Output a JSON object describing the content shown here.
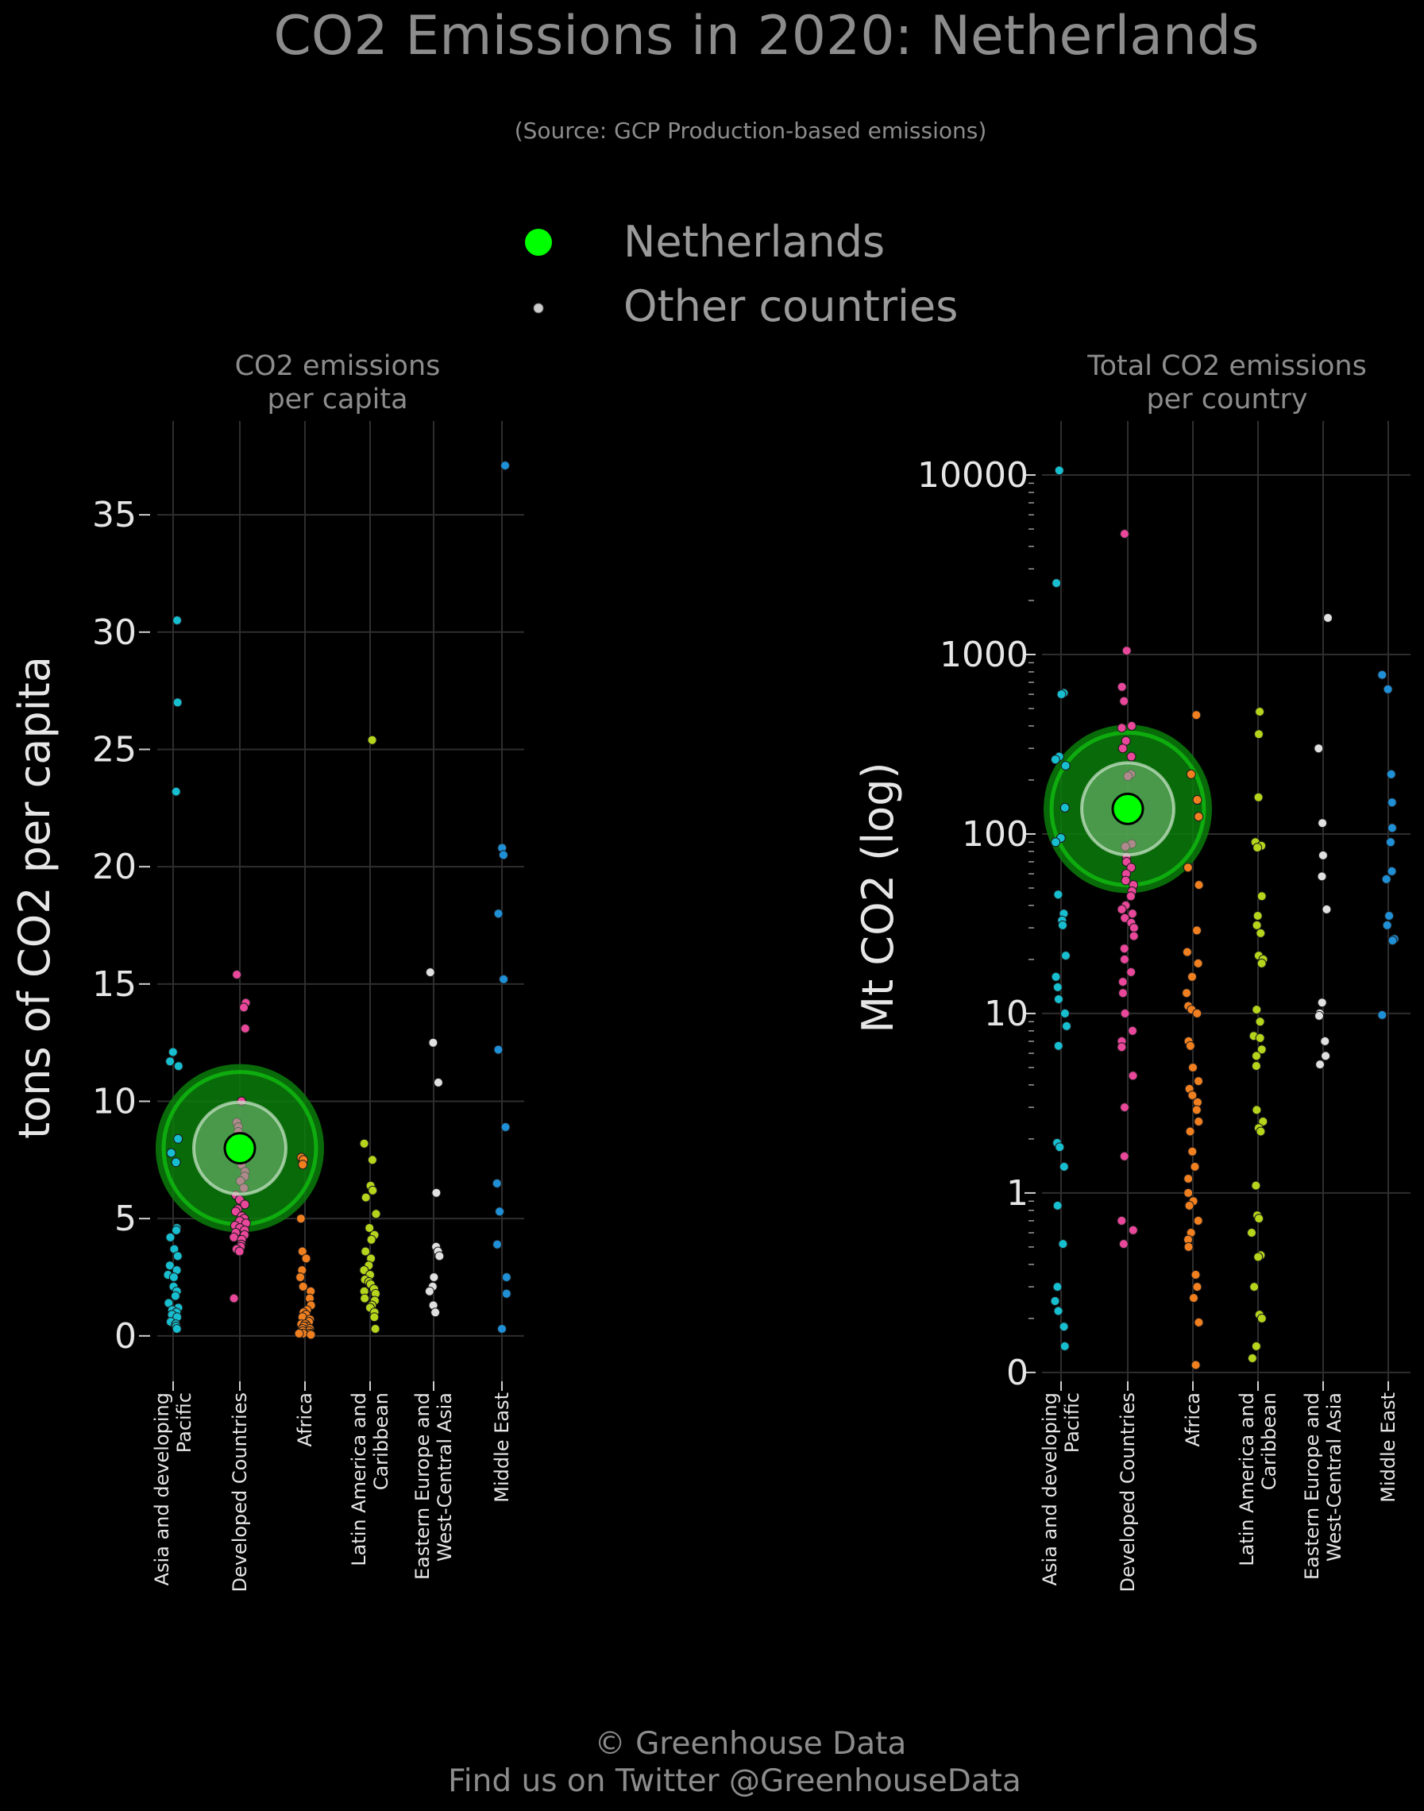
{
  "title": "CO2 Emissions in 2020: Netherlands",
  "subtitle": "(Source: GCP Production-based emissions)",
  "legend": {
    "highlight_label": "Netherlands",
    "others_label": "Other countries",
    "highlight_color": "#00ff00",
    "others_color": "#cccccc"
  },
  "footer": {
    "line1": "© Greenhouse Data",
    "line2": "Find us on Twitter @GreenhouseData"
  },
  "colors": {
    "background": "#000000",
    "Asia and developing Pacific": "#17becf",
    "Developed Countries": "#e8479a",
    "Africa": "#f07f20",
    "Latin America and Caribbean": "#b5d41c",
    "Eastern Europe and West-Central Asia": "#e0e0e0",
    "Middle East": "#1f8fd6",
    "highlight_glow": "#0a7d0a"
  },
  "chart_data": [
    {
      "type": "scatter",
      "title": "CO2 emissions\nper capita",
      "ylabel": "tons of CO2 per capita",
      "yscale": "linear",
      "ylim": [
        -1.8,
        39
      ],
      "yticks": [
        0,
        5,
        10,
        15,
        20,
        25,
        30,
        35
      ],
      "ytick_labels": [
        "0",
        "5",
        "10",
        "15",
        "20",
        "25",
        "30",
        "35"
      ],
      "grid": true,
      "categories": [
        "Asia and developing\nPacific",
        "Developed Countries",
        "Africa",
        "Latin America and\nCaribbean",
        "Eastern Europe and\nWest-Central Asia",
        "Middle East"
      ],
      "series": [
        {
          "name": "Asia and developing Pacific",
          "values": [
            30.5,
            27.0,
            23.2,
            12.1,
            11.7,
            11.5,
            8.4,
            7.8,
            7.4,
            4.6,
            4.5,
            4.2,
            3.7,
            3.4,
            3.0,
            2.8,
            2.6,
            2.5,
            2.1,
            1.9,
            1.7,
            1.4,
            1.2,
            1.1,
            1.0,
            0.9,
            0.8,
            0.6,
            0.5,
            0.4,
            0.3
          ]
        },
        {
          "name": "Developed Countries",
          "values": [
            15.4,
            14.2,
            14.0,
            13.1,
            10.0,
            9.1,
            8.9,
            8.7,
            8.5,
            8.3,
            8.1,
            7.9,
            7.7,
            7.6,
            7.3,
            7.0,
            6.8,
            6.6,
            6.3,
            6.0,
            5.8,
            5.6,
            5.4,
            5.3,
            5.1,
            5.0,
            4.9,
            4.8,
            4.7,
            4.6,
            4.5,
            4.4,
            4.3,
            4.2,
            4.1,
            3.9,
            3.8,
            3.7,
            3.6,
            1.6
          ]
        },
        {
          "name": "Africa",
          "values": [
            7.6,
            7.5,
            7.3,
            5.0,
            3.6,
            3.3,
            2.8,
            2.5,
            2.1,
            1.9,
            1.6,
            1.3,
            1.1,
            1.0,
            0.9,
            0.8,
            0.7,
            0.6,
            0.5,
            0.5,
            0.4,
            0.4,
            0.3,
            0.3,
            0.2,
            0.2,
            0.1,
            0.1,
            0.1,
            0.05
          ]
        },
        {
          "name": "Latin America and Caribbean",
          "values": [
            25.4,
            8.2,
            7.5,
            6.4,
            6.2,
            5.9,
            5.2,
            4.6,
            4.3,
            4.1,
            3.6,
            3.3,
            3.0,
            2.8,
            2.6,
            2.4,
            2.3,
            2.2,
            2.0,
            1.9,
            1.8,
            1.6,
            1.5,
            1.3,
            1.2,
            1.0,
            0.8,
            0.3
          ]
        },
        {
          "name": "Eastern Europe and West-Central Asia",
          "values": [
            15.5,
            12.5,
            10.8,
            6.1,
            3.8,
            3.6,
            3.4,
            2.5,
            2.1,
            1.9,
            1.3,
            1.0
          ]
        },
        {
          "name": "Middle East",
          "values": [
            37.1,
            20.8,
            20.5,
            18.0,
            15.2,
            12.2,
            8.9,
            6.5,
            5.3,
            3.9,
            2.5,
            1.8,
            0.3
          ]
        }
      ],
      "highlight": {
        "label": "Netherlands",
        "category": "Developed Countries",
        "value": 8.0
      }
    },
    {
      "type": "scatter",
      "title": "Total CO2 emissions\nper country",
      "ylabel": "Mt CO2 (log)",
      "yscale": "log",
      "ylim": [
        0.093,
        20000
      ],
      "yticks": [
        0.1,
        1,
        10,
        100,
        1000,
        10000
      ],
      "ytick_labels": [
        "0",
        "1",
        "10",
        "100",
        "1000",
        "10000"
      ],
      "grid": true,
      "categories": [
        "Asia and developing\nPacific",
        "Developed Countries",
        "Africa",
        "Latin America and\nCaribbean",
        "Eastern Europe and\nWest-Central Asia",
        "Middle East"
      ],
      "series": [
        {
          "name": "Asia and developing Pacific",
          "values": [
            10600,
            2500,
            610,
            600,
            270,
            260,
            240,
            140,
            95,
            90,
            46,
            36,
            33,
            31,
            21,
            16,
            14,
            12,
            10,
            8.5,
            6.6,
            1.9,
            1.8,
            1.4,
            0.85,
            0.52,
            0.3,
            0.25,
            0.22,
            0.18,
            0.14
          ]
        },
        {
          "name": "Developed Countries",
          "values": [
            4700,
            1050,
            660,
            550,
            400,
            390,
            330,
            300,
            270,
            215,
            210,
            88,
            85,
            75,
            70,
            65,
            60,
            55,
            52,
            48,
            45,
            40,
            38,
            36,
            34,
            32,
            30,
            27,
            23,
            20,
            17,
            15,
            13,
            10,
            8,
            7,
            6.5,
            4.5,
            3,
            1.6,
            0.7,
            0.62,
            0.52
          ]
        },
        {
          "name": "Africa",
          "values": [
            460,
            215,
            155,
            125,
            65,
            52,
            29,
            22,
            19,
            16,
            13,
            11,
            10.5,
            10,
            7,
            6.6,
            5,
            4.2,
            3.8,
            3.5,
            3.2,
            2.9,
            2.5,
            2.2,
            1.7,
            1.4,
            1.2,
            1,
            0.9,
            0.85,
            0.7,
            0.6,
            0.55,
            0.5,
            0.35,
            0.3,
            0.26,
            0.19,
            0.11
          ]
        },
        {
          "name": "Latin America and Caribbean",
          "values": [
            480,
            360,
            160,
            90,
            86,
            84,
            45,
            35,
            31,
            28,
            21,
            20,
            19,
            10.5,
            9,
            7.5,
            7.3,
            6.3,
            5.8,
            5.1,
            2.9,
            2.5,
            2.3,
            2.2,
            1.1,
            0.75,
            0.72,
            0.6,
            0.45,
            0.44,
            0.3,
            0.21,
            0.2,
            0.14,
            0.12
          ]
        },
        {
          "name": "Eastern Europe and West-Central Asia",
          "values": [
            1600,
            300,
            115,
            76,
            58,
            38,
            11.5,
            10,
            9.7,
            7,
            5.8,
            5.2
          ]
        },
        {
          "name": "Middle East",
          "values": [
            770,
            640,
            215,
            150,
            108,
            90,
            62,
            56,
            35,
            31,
            26,
            25.5,
            9.8
          ]
        }
      ],
      "highlight": {
        "label": "Netherlands",
        "category": "Developed Countries",
        "value": 138
      }
    }
  ]
}
